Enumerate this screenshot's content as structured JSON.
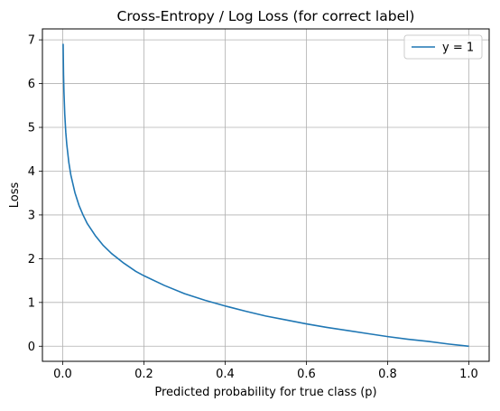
{
  "chart_data": {
    "type": "line",
    "title": "Cross-Entropy / Log Loss (for correct label)",
    "xlabel": "Predicted probability for true class (p)",
    "ylabel": "Loss",
    "xlim": [
      -0.05,
      1.05
    ],
    "ylim": [
      -0.345,
      7.25
    ],
    "xticks": [
      0.0,
      0.2,
      0.4,
      0.6,
      0.8,
      1.0
    ],
    "xtick_labels": [
      "0.0",
      "0.2",
      "0.4",
      "0.6",
      "0.8",
      "1.0"
    ],
    "yticks": [
      0,
      1,
      2,
      3,
      4,
      5,
      6,
      7
    ],
    "ytick_labels": [
      "0",
      "1",
      "2",
      "3",
      "4",
      "5",
      "6",
      "7"
    ],
    "grid": true,
    "legend_position": "top-right",
    "series": [
      {
        "name": "y = 1",
        "color": "#1f77b4",
        "x": [
          0.001,
          0.002,
          0.003,
          0.005,
          0.0075,
          0.01,
          0.015,
          0.02,
          0.03,
          0.04,
          0.05,
          0.06,
          0.08,
          0.1,
          0.12,
          0.15,
          0.18,
          0.2,
          0.25,
          0.3,
          0.35,
          0.4,
          0.45,
          0.5,
          0.55,
          0.6,
          0.65,
          0.7,
          0.75,
          0.8,
          0.85,
          0.9,
          0.95,
          1.0
        ],
        "y": [
          6.91,
          6.21,
          5.81,
          5.3,
          4.89,
          4.61,
          4.2,
          3.91,
          3.51,
          3.22,
          3.0,
          2.81,
          2.53,
          2.3,
          2.12,
          1.9,
          1.71,
          1.61,
          1.39,
          1.2,
          1.05,
          0.92,
          0.8,
          0.69,
          0.6,
          0.51,
          0.43,
          0.36,
          0.29,
          0.22,
          0.16,
          0.11,
          0.05,
          0.0
        ]
      }
    ]
  }
}
